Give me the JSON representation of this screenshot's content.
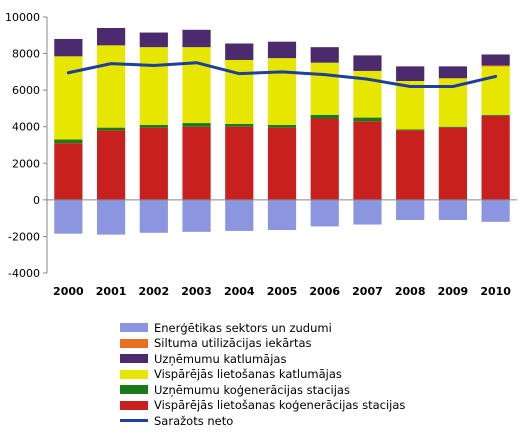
{
  "chart_data": {
    "type": "bar",
    "stacked": true,
    "categories": [
      "2000",
      "2001",
      "2002",
      "2003",
      "2004",
      "2005",
      "2006",
      "2007",
      "2008",
      "2009",
      "2010"
    ],
    "ylim": [
      -4000,
      10000
    ],
    "yticks": [
      -4000,
      -2000,
      0,
      2000,
      4000,
      6000,
      8000,
      10000
    ],
    "ytick_labels": [
      "-4000",
      "-2000",
      "0",
      "2000",
      "4000",
      "6000",
      "8000",
      "10000"
    ],
    "grid": false,
    "legend_position": "bottom",
    "series": [
      {
        "name": "Vispārējās lietošanas koģenerācijas stacijas",
        "color": "#c8201f",
        "values": [
          3100,
          3800,
          3950,
          4000,
          4000,
          3950,
          4450,
          4300,
          3800,
          3950,
          4600
        ]
      },
      {
        "name": "Uzņēmumu koģenerācijas stacijas",
        "color": "#1a7a1a",
        "values": [
          200,
          150,
          150,
          200,
          150,
          150,
          200,
          200,
          50,
          50,
          50
        ]
      },
      {
        "name": "Vispārējās lietošanas katlumājas",
        "color": "#e6e600",
        "values": [
          4550,
          4500,
          4250,
          4150,
          3500,
          3650,
          2850,
          2550,
          2650,
          2650,
          2650
        ]
      },
      {
        "name": "Siltuma utilizācijas iekārtas",
        "color": "#e87020",
        "values": [
          0,
          0,
          0,
          0,
          0,
          0,
          0,
          0,
          0,
          0,
          50
        ]
      },
      {
        "name": "Uzņēmumu katlumājas",
        "color": "#4b2a6e",
        "values": [
          950,
          950,
          800,
          950,
          900,
          900,
          850,
          850,
          800,
          650,
          600
        ]
      },
      {
        "name": "Enerģētikas sektors un zudumi",
        "color": "#8c96e0",
        "values": [
          -1850,
          -1900,
          -1800,
          -1750,
          -1700,
          -1650,
          -1450,
          -1350,
          -1100,
          -1100,
          -1200
        ]
      }
    ],
    "line": {
      "name": "Saražots neto",
      "color": "#1f3f9c",
      "values": [
        6950,
        7450,
        7350,
        7500,
        6900,
        7000,
        6850,
        6600,
        6200,
        6200,
        6750
      ]
    }
  },
  "legend": [
    {
      "label": "Enerģētikas sektors un zudumi",
      "color": "#8c96e0",
      "kind": "box"
    },
    {
      "label": "Siltuma utilizācijas iekārtas",
      "color": "#e87020",
      "kind": "box"
    },
    {
      "label": "Uzņēmumu katlumājas",
      "color": "#4b2a6e",
      "kind": "box"
    },
    {
      "label": "Vispārējās lietošanas katlumājas",
      "color": "#e6e600",
      "kind": "box"
    },
    {
      "label": "Uzņēmumu koģenerācijas stacijas",
      "color": "#1a7a1a",
      "kind": "box"
    },
    {
      "label": "Vispārējās lietošanas koģenerācijas stacijas",
      "color": "#c8201f",
      "kind": "box"
    },
    {
      "label": "Saražots neto",
      "color": "#1f3f9c",
      "kind": "line"
    }
  ]
}
